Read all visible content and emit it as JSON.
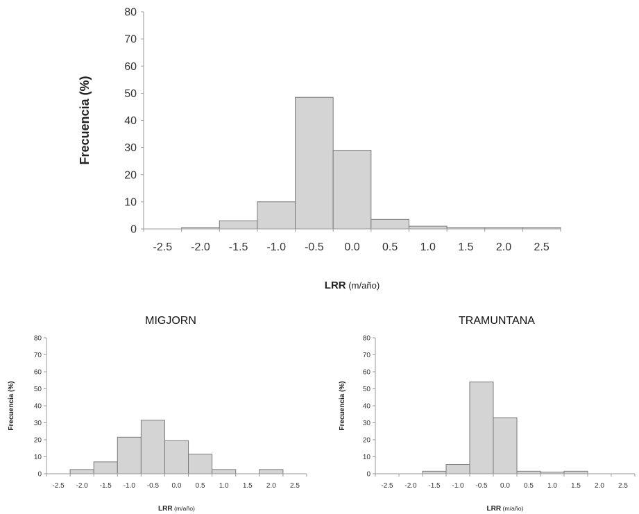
{
  "chart_data": [
    {
      "type": "bar",
      "title": "",
      "xlabel_bold": "LRR",
      "xlabel_rest": " (m/año)",
      "ylabel": "Frecuencia (%)",
      "ylim": [
        0,
        80
      ],
      "yticks": [
        "0",
        "10",
        "20",
        "30",
        "40",
        "50",
        "60",
        "70",
        "80"
      ],
      "categories": [
        "-2.5",
        "-2.0",
        "-1.5",
        "-1.0",
        "-0.5",
        "0.0",
        "0.5",
        "1.0",
        "1.5",
        "2.0",
        "2.5"
      ],
      "values": [
        0,
        0.5,
        3,
        10,
        48.5,
        29,
        3.5,
        1,
        0.5,
        0.5,
        0.5
      ],
      "grid": false
    },
    {
      "type": "bar",
      "title": "MIGJORN",
      "xlabel_bold": "LRR",
      "xlabel_rest": " (m/año)",
      "ylabel": "Frecuencia (%)",
      "ylim": [
        0,
        80
      ],
      "yticks": [
        "0",
        "10",
        "20",
        "30",
        "40",
        "50",
        "60",
        "70",
        "80"
      ],
      "categories": [
        "-2.5",
        "-2.0",
        "-1.5",
        "-1.0",
        "-0.5",
        "0.0",
        "0.5",
        "1.0",
        "1.5",
        "2.0",
        "2.5"
      ],
      "values": [
        0,
        2.5,
        7,
        21.5,
        31.5,
        19.5,
        11.5,
        2.5,
        0,
        2.5,
        0
      ],
      "grid": false
    },
    {
      "type": "bar",
      "title": "TRAMUNTANA",
      "xlabel_bold": "LRR",
      "xlabel_rest": " (m/año)",
      "ylabel": "Frecuencia (%)",
      "ylim": [
        0,
        80
      ],
      "yticks": [
        "0",
        "10",
        "20",
        "30",
        "40",
        "50",
        "60",
        "70",
        "80"
      ],
      "categories": [
        "-2.5",
        "-2.0",
        "-1.5",
        "-1.0",
        "-0.5",
        "0.0",
        "0.5",
        "1.0",
        "1.5",
        "2.0",
        "2.5"
      ],
      "values": [
        0,
        0,
        1.5,
        5.5,
        54,
        33,
        1.5,
        1,
        1.5,
        0,
        0
      ],
      "grid": false
    }
  ],
  "colors": {
    "bar_fill": "#d4d4d4",
    "bar_stroke": "#7a7a7a",
    "axis": "#9a9a9a",
    "text": "#222222"
  }
}
